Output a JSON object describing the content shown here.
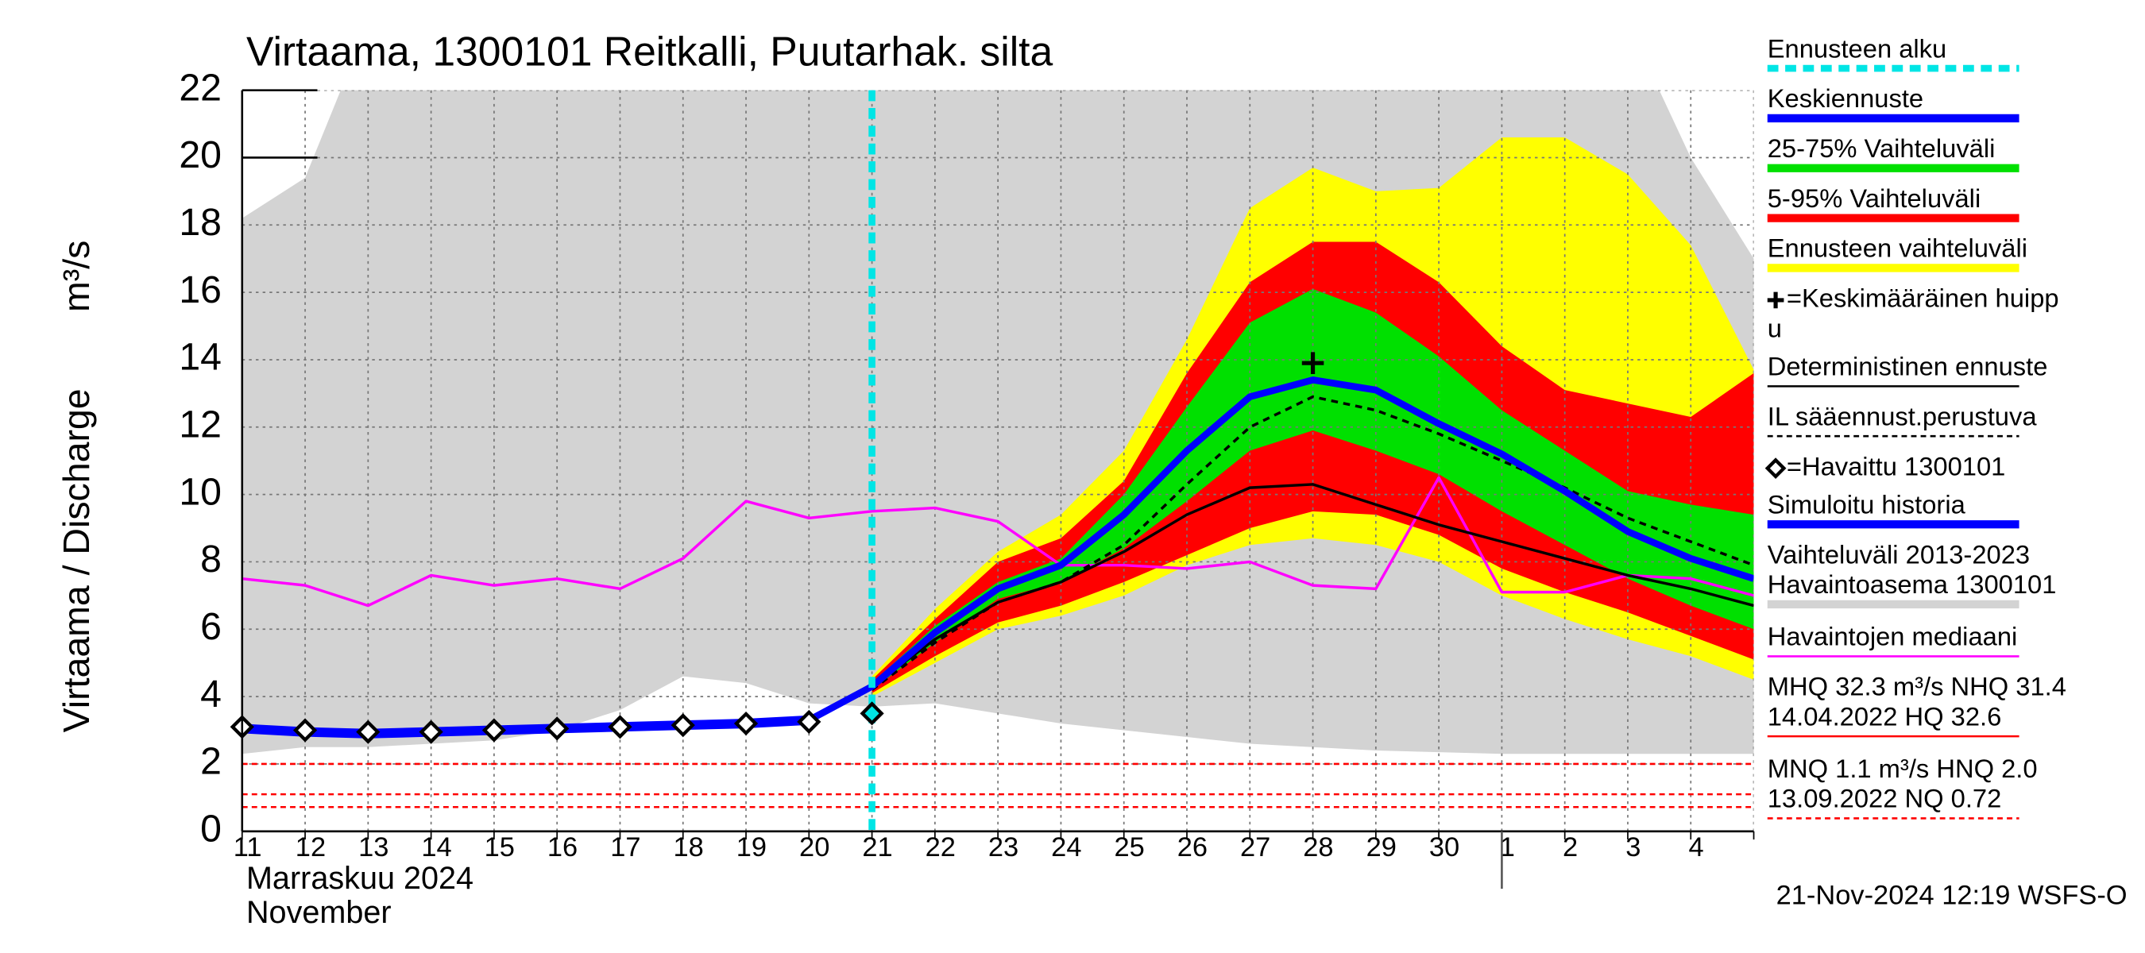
{
  "chart_data": {
    "type": "line",
    "title": "Virtaama, 1300101 Reitkalli, Puutarhak. silta",
    "y_label": "Virtaama / Discharge",
    "y_unit": "m³/s",
    "categories": [
      "11",
      "12",
      "13",
      "14",
      "15",
      "16",
      "17",
      "18",
      "19",
      "20",
      "21",
      "22",
      "23",
      "24",
      "25",
      "26",
      "27",
      "28",
      "29",
      "30",
      "1",
      "2",
      "3",
      "4",
      null
    ],
    "month_labels": [
      "Marraskuu 2024",
      "November"
    ],
    "ylim": [
      0,
      22
    ],
    "yticks": [
      0,
      2,
      4,
      6,
      8,
      10,
      12,
      14,
      16,
      18,
      20,
      22
    ],
    "grid": true,
    "forecast_start": 10,
    "bands": [
      {
        "color": "#d3d3d3",
        "high": [
          18.2,
          19.4,
          24,
          24,
          24,
          24,
          24,
          24,
          24,
          24,
          24,
          24,
          24,
          24,
          24,
          24,
          24,
          24,
          24,
          24,
          24,
          24,
          24,
          20,
          17
        ],
        "low": [
          2.3,
          2.5,
          2.5,
          2.6,
          2.7,
          3.0,
          3.6,
          4.6,
          4.4,
          3.8,
          3.7,
          3.8,
          3.5,
          3.2,
          3.0,
          2.8,
          2.6,
          2.5,
          2.4,
          2.35,
          2.3,
          2.3,
          2.3,
          2.3,
          2.3
        ]
      },
      {
        "color": "#ffff00",
        "high": [
          null,
          null,
          null,
          null,
          null,
          null,
          null,
          null,
          null,
          null,
          4.6,
          6.6,
          8.3,
          9.4,
          11.3,
          14.6,
          18.5,
          19.7,
          19.0,
          19.1,
          20.6,
          20.6,
          19.5,
          17.4,
          13.7
        ],
        "low": [
          null,
          null,
          null,
          null,
          null,
          null,
          null,
          null,
          null,
          null,
          4.0,
          5.0,
          6.0,
          6.4,
          7.0,
          7.9,
          8.5,
          8.7,
          8.5,
          8.0,
          7.0,
          6.3,
          5.7,
          5.2,
          4.5
        ]
      },
      {
        "color": "#ff0000",
        "high": [
          null,
          null,
          null,
          null,
          null,
          null,
          null,
          null,
          null,
          null,
          4.5,
          6.3,
          8.0,
          8.7,
          10.4,
          13.6,
          16.3,
          17.5,
          17.5,
          16.3,
          14.4,
          13.1,
          12.7,
          12.3,
          13.6
        ],
        "low": [
          null,
          null,
          null,
          null,
          null,
          null,
          null,
          null,
          null,
          null,
          4.1,
          5.2,
          6.2,
          6.7,
          7.4,
          8.2,
          9.0,
          9.5,
          9.4,
          8.8,
          7.8,
          7.1,
          6.5,
          5.8,
          5.1
        ]
      },
      {
        "color": "#00e000",
        "high": [
          null,
          null,
          null,
          null,
          null,
          null,
          null,
          null,
          null,
          null,
          4.4,
          6.1,
          7.4,
          8.1,
          10.0,
          12.6,
          15.1,
          16.1,
          15.4,
          14.1,
          12.5,
          11.3,
          10.1,
          9.7,
          9.4
        ],
        "low": [
          null,
          null,
          null,
          null,
          null,
          null,
          null,
          null,
          null,
          null,
          4.2,
          5.6,
          6.9,
          7.4,
          8.4,
          9.8,
          11.3,
          11.9,
          11.3,
          10.6,
          9.5,
          8.5,
          7.5,
          6.7,
          6.0
        ]
      }
    ],
    "series": [
      {
        "color": "#ff00ff",
        "width": 2,
        "dash": null,
        "values": [
          7.5,
          7.3,
          6.7,
          7.6,
          7.3,
          7.5,
          7.2,
          8.1,
          9.8,
          9.3,
          9.5,
          9.6,
          9.2,
          7.9,
          7.9,
          7.8,
          8.0,
          7.3,
          7.2,
          10.5,
          7.1,
          7.1,
          7.6,
          7.5,
          7.0
        ]
      },
      {
        "color": "#000000",
        "width": 2,
        "dash": null,
        "values": [
          null,
          null,
          null,
          null,
          null,
          null,
          null,
          null,
          null,
          null,
          4.3,
          5.7,
          6.8,
          7.4,
          8.3,
          9.4,
          10.2,
          10.3,
          9.7,
          9.1,
          8.6,
          8.1,
          7.6,
          7.2,
          6.7
        ]
      },
      {
        "color": "#000000",
        "width": 2,
        "dash": "5 4",
        "values": [
          null,
          null,
          null,
          null,
          null,
          null,
          null,
          null,
          null,
          null,
          4.2,
          5.6,
          6.8,
          7.4,
          8.5,
          10.3,
          12.0,
          12.9,
          12.5,
          11.8,
          11.0,
          10.2,
          9.3,
          8.6,
          7.9
        ]
      },
      {
        "color": "#0000ff",
        "width": 7,
        "dash": null,
        "values": [
          3.05,
          2.95,
          2.9,
          2.95,
          3.0,
          3.05,
          3.1,
          3.15,
          3.2,
          3.3,
          null,
          null,
          null,
          null,
          null,
          null,
          null,
          null,
          null,
          null,
          null,
          null,
          null,
          null,
          null
        ]
      },
      {
        "color": "#0000ff",
        "width": 5,
        "dash": null,
        "values": [
          null,
          null,
          null,
          null,
          null,
          null,
          null,
          null,
          null,
          3.3,
          4.3,
          5.9,
          7.2,
          7.9,
          9.4,
          11.3,
          12.9,
          13.4,
          13.1,
          12.1,
          11.2,
          10.1,
          8.9,
          8.1,
          7.5
        ]
      }
    ],
    "observed": [
      3.1,
      3.0,
      2.95,
      2.95,
      3.0,
      3.05,
      3.1,
      3.15,
      3.2,
      3.25,
      3.5,
      null,
      null,
      null,
      null,
      null,
      null,
      null,
      null,
      null,
      null,
      null,
      null,
      null,
      null
    ],
    "peak": {
      "x": 17,
      "y": 13.9
    },
    "hlines": [
      {
        "value": 2.0,
        "color": "#ff0000"
      },
      {
        "value": 1.1,
        "color": "#ff0000"
      },
      {
        "value": 0.72,
        "color": "#ff0000"
      }
    ],
    "legend": [
      {
        "label": [
          "Ennusteen alku"
        ],
        "color": "#00e5e5",
        "style": "dash"
      },
      {
        "label": [
          "Keskiennuste"
        ],
        "color": "#0000ff",
        "style": "line"
      },
      {
        "label": [
          "25-75% Vaihteluväli"
        ],
        "color": "#00e000",
        "style": "line"
      },
      {
        "label": [
          "5-95% Vaihteluväli"
        ],
        "color": "#ff0000",
        "style": "line"
      },
      {
        "label": [
          "Ennusteen vaihteluväli"
        ],
        "color": "#ffff00",
        "style": "line"
      },
      {
        "label": [
          "=Keskimääräinen huipp",
          "u"
        ],
        "color": "#000000",
        "style": "plus"
      },
      {
        "label": [
          "Deterministinen ennuste"
        ],
        "color": "#000000",
        "style": "thin"
      },
      {
        "label": [
          "IL sääennust.perustuva"
        ],
        "color": "#000000",
        "style": "thindash"
      },
      {
        "label": [
          "=Havaittu 1300101"
        ],
        "color": "#000000",
        "style": "diamond"
      },
      {
        "label": [
          "Simuloitu historia"
        ],
        "color": "#0000ff",
        "style": "line"
      },
      {
        "label": [
          "Vaihteluväli 2013-2023",
          " Havaintoasema 1300101"
        ],
        "color": "#d3d3d3",
        "style": "line"
      },
      {
        "label": [
          "Havaintojen mediaani"
        ],
        "color": "#ff00ff",
        "style": "thin"
      },
      {
        "label": [
          "MHQ 32.3 m³/s NHQ 31.4",
          "14.04.2022 HQ 32.6"
        ],
        "color": "#ff0000",
        "style": "thin"
      },
      {
        "label": [
          "MNQ  1.1 m³/s HNQ  2.0",
          "13.09.2022 NQ 0.72"
        ],
        "color": "#ff0000",
        "style": "thindash"
      }
    ],
    "timestamp": "21-Nov-2024 12:19 WSFS-O"
  }
}
